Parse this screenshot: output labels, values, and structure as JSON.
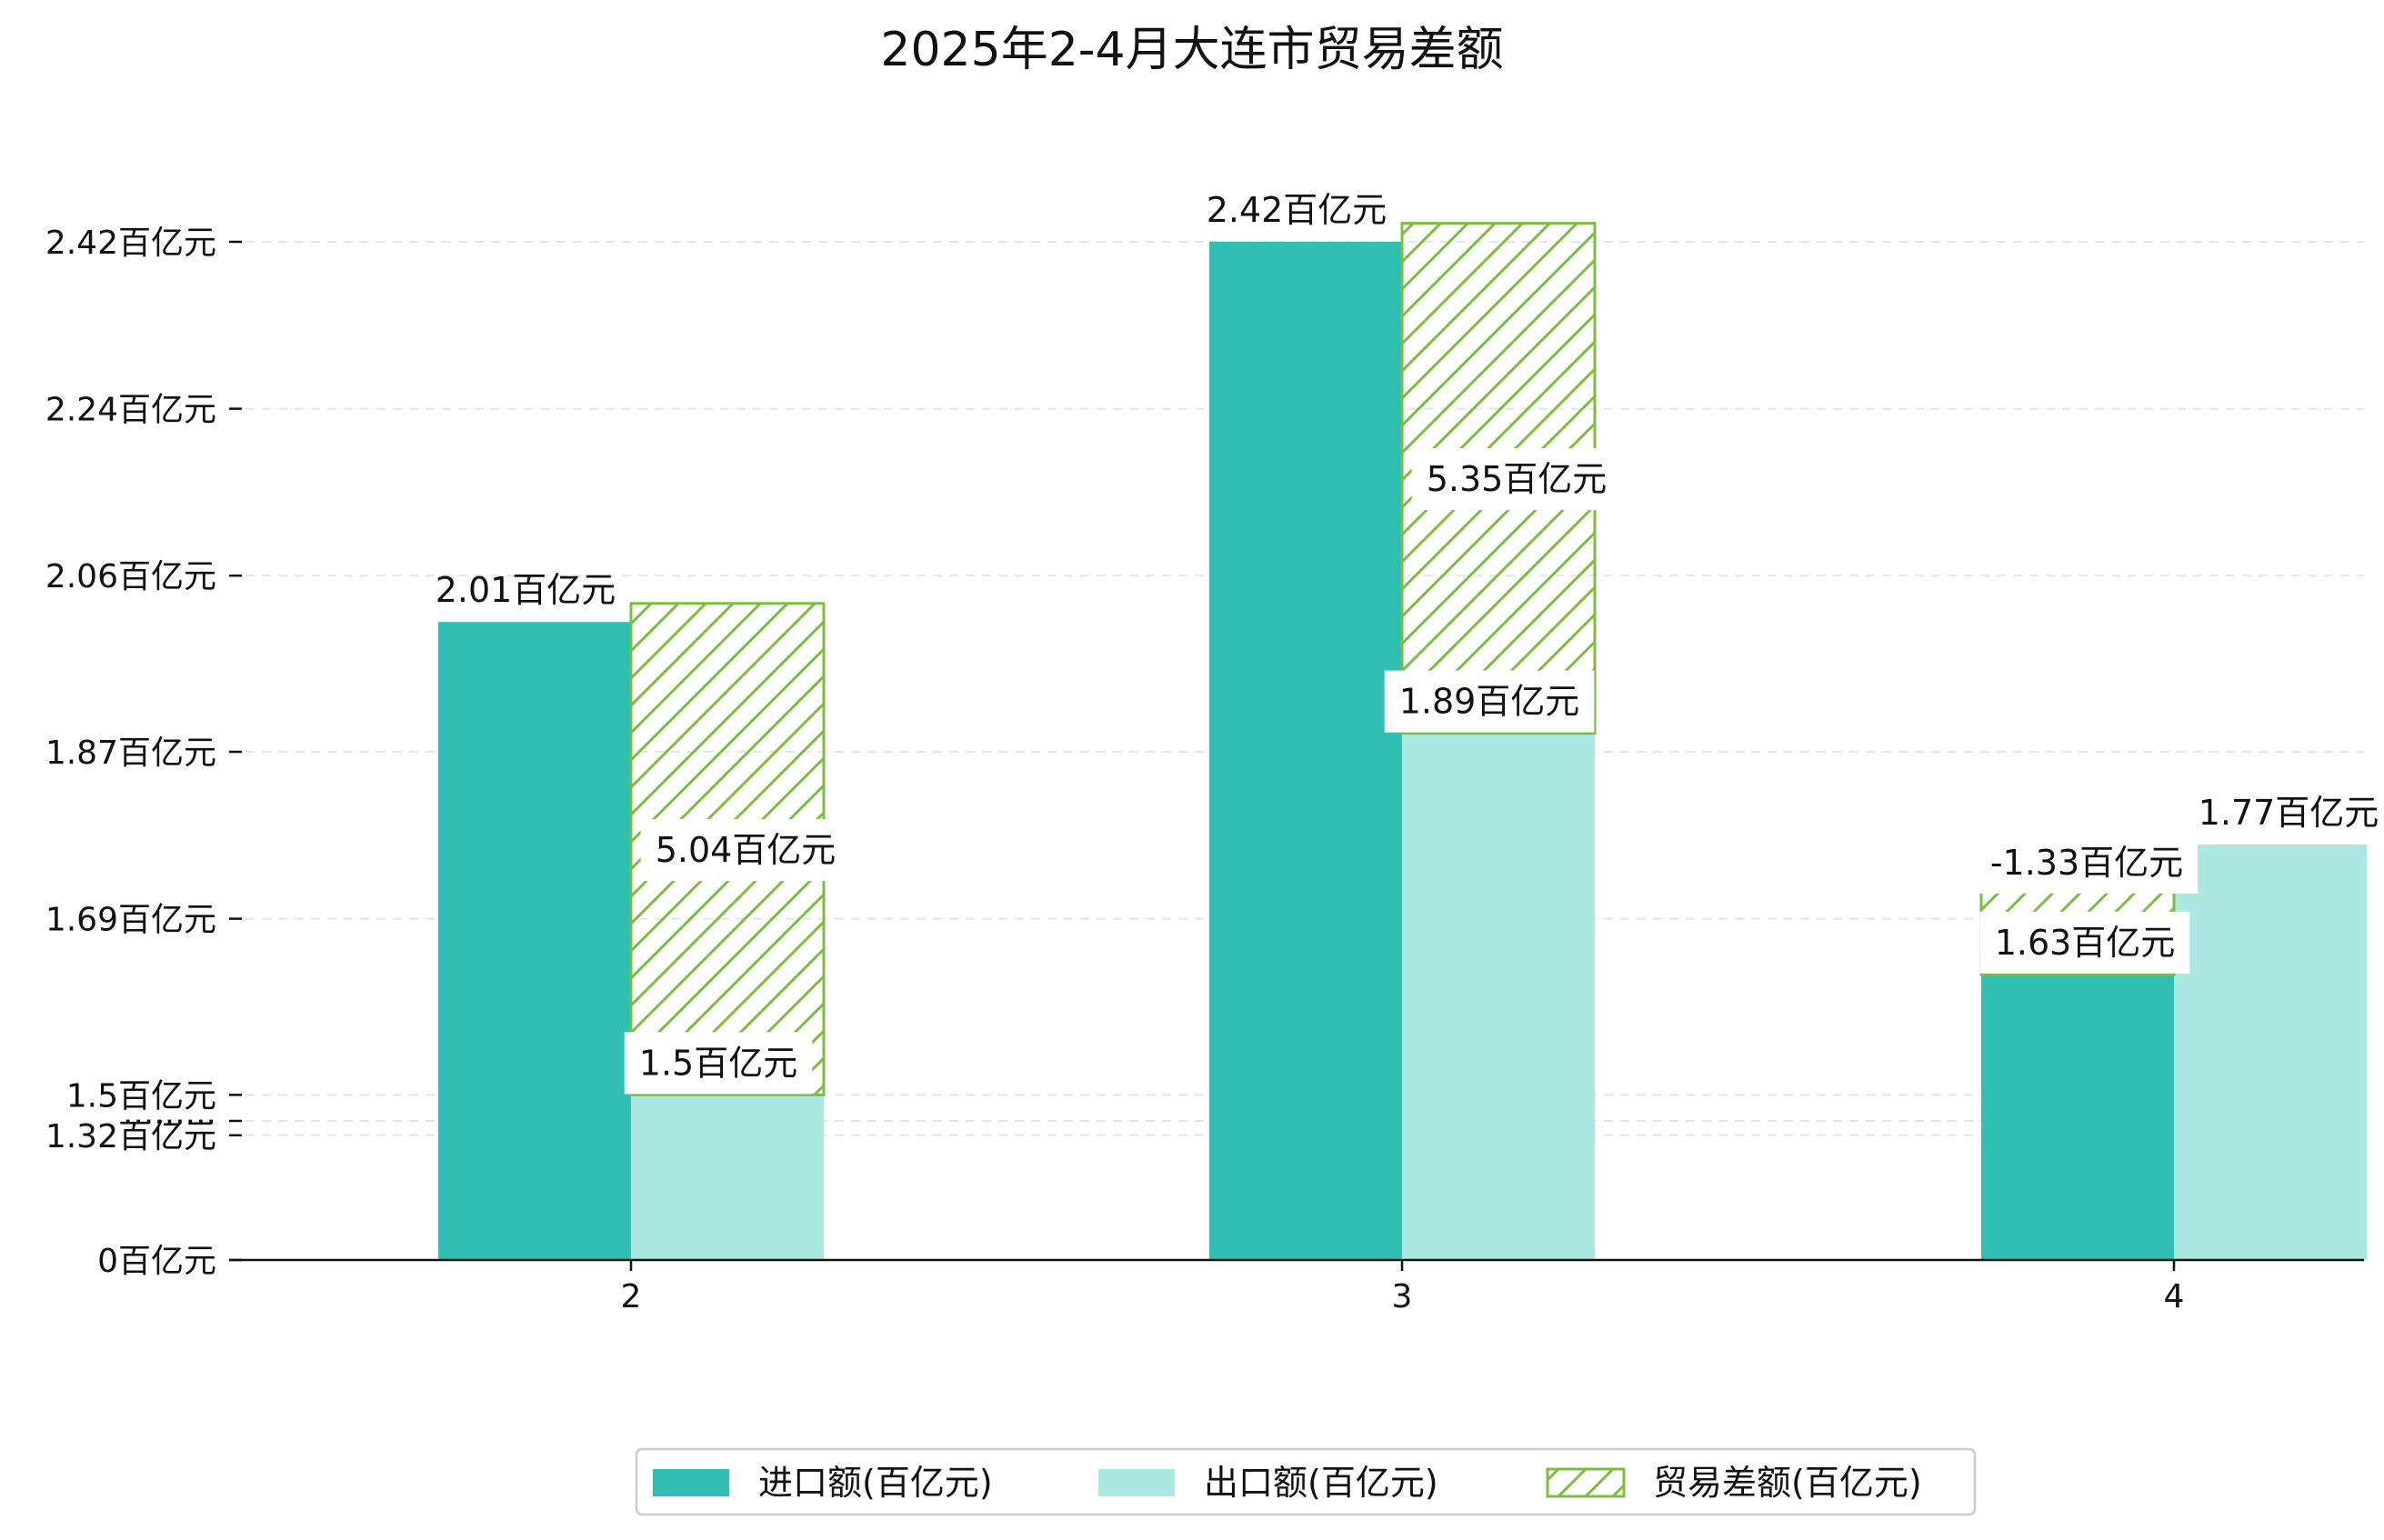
{
  "chart_data": {
    "type": "bar",
    "title": "2025年2-4月大连市贸易差额",
    "xlabel": "",
    "ylabel": "",
    "categories": [
      "2",
      "3",
      "4"
    ],
    "series": [
      {
        "name": "进口额(百亿元)",
        "values": [
          2.01,
          2.42,
          1.63
        ],
        "labels": [
          "2.01百亿元",
          "2.42百亿元",
          "1.63百亿元"
        ],
        "color": "#32bfb3"
      },
      {
        "name": "出口额(百亿元)",
        "values": [
          1.5,
          1.89,
          1.77
        ],
        "labels": [
          "1.5百亿元",
          "1.89百亿元",
          "1.77百亿元"
        ],
        "color": "#abe8e2"
      },
      {
        "name": "贸易差额(百亿元)",
        "values": [
          5.04,
          5.35,
          -1.33
        ],
        "labels": [
          "5.04百亿元",
          "5.35百亿元",
          "-1.33百亿元"
        ],
        "color": "#7cbf3f",
        "pattern": "hatch"
      }
    ],
    "y_axis": {
      "tick_labels": [
        "0百亿元",
        "·········",
        "1.32百亿元",
        "1.5百亿元",
        "1.69百亿元",
        "1.87百亿元",
        "2.06百亿元",
        "2.24百亿元",
        "2.42百亿元"
      ],
      "tick_values": [
        0,
        null,
        1.32,
        1.5,
        1.69,
        1.87,
        2.06,
        2.24,
        2.42
      ],
      "broken_axis": true
    },
    "grid": "y-dashed",
    "legend": "bottom-center"
  }
}
